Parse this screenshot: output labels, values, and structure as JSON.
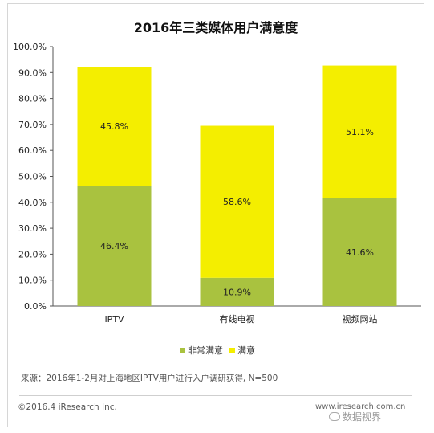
{
  "chart_data": {
    "type": "bar",
    "stacked": true,
    "title": "2016年三类媒体用户满意度",
    "categories": [
      "IPTV",
      "有线电视",
      "视频网站"
    ],
    "series": [
      {
        "name": "非常满意",
        "values": [
          46.4,
          10.9,
          41.6
        ],
        "labels": [
          "46.4%",
          "10.9%",
          "41.6%"
        ],
        "color": "#a9c23f"
      },
      {
        "name": "满意",
        "values": [
          45.8,
          58.6,
          51.1
        ],
        "labels": [
          "45.8%",
          "58.6%",
          "51.1%"
        ],
        "color": "#f4ee00"
      }
    ],
    "ylim": [
      0,
      100
    ],
    "yticks": [
      "0.0%",
      "10.0%",
      "20.0%",
      "30.0%",
      "40.0%",
      "50.0%",
      "60.0%",
      "70.0%",
      "80.0%",
      "90.0%",
      "100.0%"
    ],
    "grid": false,
    "legend": "bottom-center"
  },
  "source": "来源：2016年1-2月对上海地区IPTV用户进行入户调研获得, N=500",
  "copyright": "©2016.4 iResearch Inc.",
  "website": "www.iresearch.com.cn",
  "watermark": "数据视界",
  "colors": {
    "very_satisfied": "#a9c23f",
    "satisfied": "#f4ee00"
  }
}
